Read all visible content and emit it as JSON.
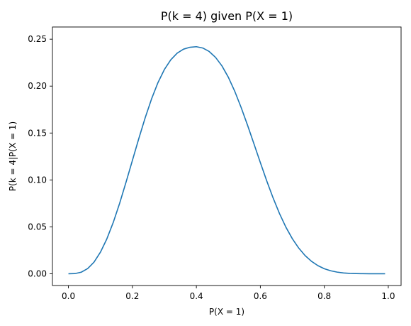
{
  "chart_data": {
    "type": "line",
    "title": "P(k = 4) given P(X = 1)",
    "xlabel": "P(X = 1)",
    "ylabel": "P(k = 4|P(X = 1)",
    "xlim": [
      -0.05,
      1.04
    ],
    "ylim": [
      -0.0125,
      0.263
    ],
    "xticks": [
      0.0,
      0.2,
      0.4,
      0.6,
      0.8,
      1.0
    ],
    "xtick_labels": [
      "0.0",
      "0.2",
      "0.4",
      "0.6",
      "0.8",
      "1.0"
    ],
    "yticks": [
      0.0,
      0.05,
      0.1,
      0.15,
      0.2,
      0.25
    ],
    "ytick_labels": [
      "0.00",
      "0.05",
      "0.10",
      "0.15",
      "0.20",
      "0.25"
    ],
    "grid": false,
    "legend": "none",
    "series": [
      {
        "color": "#1f77b4",
        "x": [
          0.0,
          0.02,
          0.04,
          0.06,
          0.08,
          0.1,
          0.12,
          0.14,
          0.16,
          0.18,
          0.2,
          0.22,
          0.24,
          0.26,
          0.28,
          0.3,
          0.32,
          0.34,
          0.36,
          0.38,
          0.4,
          0.42,
          0.44,
          0.46,
          0.48,
          0.5,
          0.52,
          0.54,
          0.56,
          0.58,
          0.6,
          0.62,
          0.64,
          0.66,
          0.68,
          0.7,
          0.72,
          0.74,
          0.76,
          0.78,
          0.8,
          0.82,
          0.84,
          0.86,
          0.88,
          0.9,
          0.92,
          0.94,
          0.96,
          0.98,
          0.99
        ],
        "y": [
          0.0,
          0.0002,
          0.0017,
          0.0055,
          0.0124,
          0.023,
          0.0371,
          0.0546,
          0.075,
          0.0975,
          0.1208,
          0.1441,
          0.1663,
          0.1865,
          0.2038,
          0.2177,
          0.228,
          0.2351,
          0.2394,
          0.2414,
          0.242,
          0.2406,
          0.2369,
          0.2306,
          0.2215,
          0.2094,
          0.1945,
          0.1772,
          0.1583,
          0.1385,
          0.1185,
          0.099,
          0.0807,
          0.0641,
          0.0496,
          0.0374,
          0.0274,
          0.0194,
          0.0133,
          0.0087,
          0.0054,
          0.0032,
          0.0018,
          0.0009,
          0.0004,
          0.0002,
          0.0001,
          0.0,
          0.0,
          0.0,
          0.0
        ]
      }
    ]
  }
}
